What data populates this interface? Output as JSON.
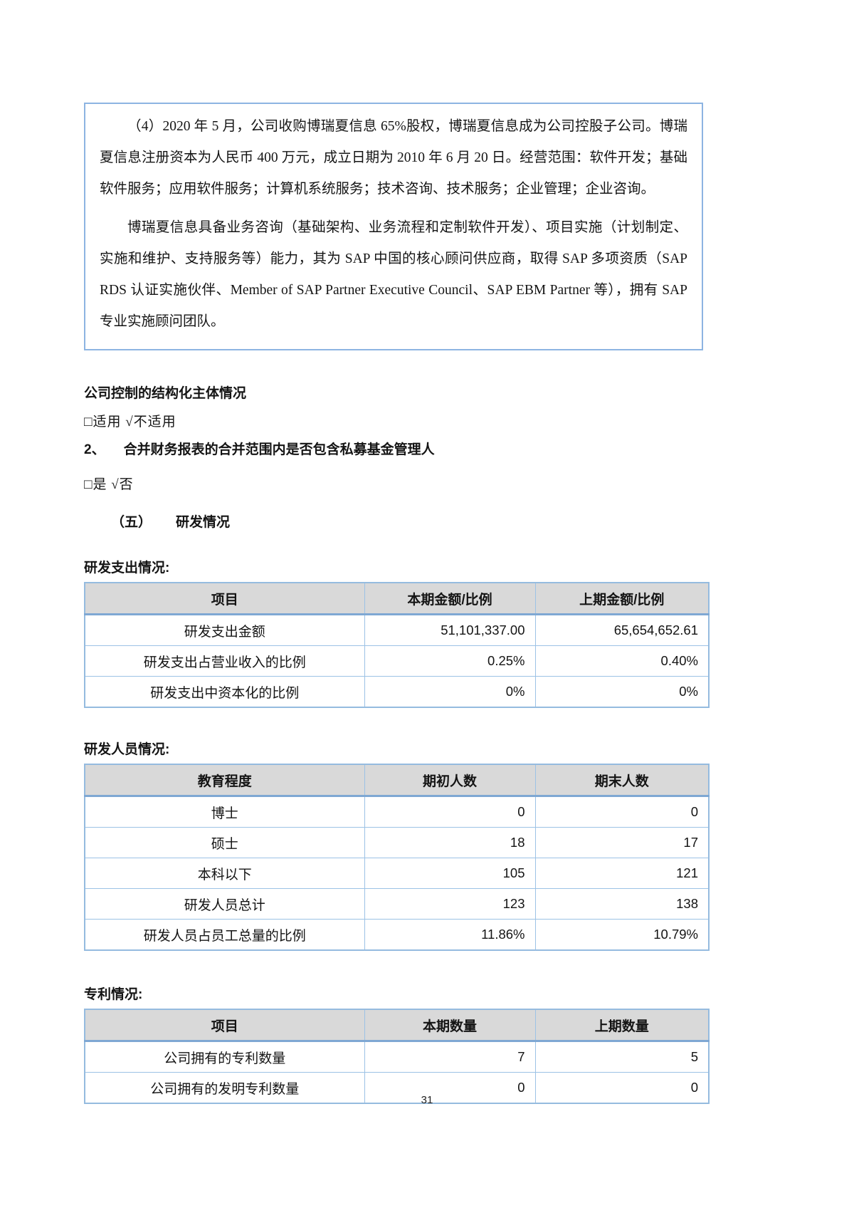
{
  "intro_box": {
    "paragraphs": [
      "（4）2020 年 5 月，公司收购博瑞夏信息 65%股权，博瑞夏信息成为公司控股子公司。博瑞夏信息注册资本为人民币 400 万元，成立日期为 2010 年 6 月 20 日。经营范围：软件开发；基础软件服务；应用软件服务；计算机系统服务；技术咨询、技术服务；企业管理；企业咨询。",
      "博瑞夏信息具备业务咨询（基础架构、业务流程和定制软件开发）、项目实施（计划制定、实施和维护、支持服务等）能力，其为 SAP 中国的核心顾问供应商，取得 SAP 多项资质（SAP RDS 认证实施伙伴、Member of SAP Partner Executive Council、SAP EBM Partner 等），拥有 SAP 专业实施顾问团队。"
    ]
  },
  "sections": {
    "structured_entity": {
      "title": "公司控制的结构化主体情况",
      "checkbox_line": "□适用  √不适用"
    },
    "q2": {
      "number": "2、",
      "title": "合并财务报表的合并范围内是否包含私募基金管理人",
      "checkbox_line": "□是  √否"
    },
    "rd": {
      "number": "（五）",
      "title": "研发情况"
    }
  },
  "tables": {
    "rd_expense": {
      "label": "研发支出情况:",
      "headers": [
        "项目",
        "本期金额/比例",
        "上期金额/比例"
      ],
      "rows": [
        [
          "研发支出金额",
          "51,101,337.00",
          "65,654,652.61"
        ],
        [
          "研发支出占营业收入的比例",
          "0.25%",
          "0.40%"
        ],
        [
          "研发支出中资本化的比例",
          "0%",
          "0%"
        ]
      ]
    },
    "rd_staff": {
      "label": "研发人员情况:",
      "headers": [
        "教育程度",
        "期初人数",
        "期末人数"
      ],
      "rows": [
        [
          "博士",
          "0",
          "0"
        ],
        [
          "硕士",
          "18",
          "17"
        ],
        [
          "本科以下",
          "105",
          "121"
        ],
        [
          "研发人员总计",
          "123",
          "138"
        ],
        [
          "研发人员占员工总量的比例",
          "11.86%",
          "10.79%"
        ]
      ]
    },
    "patents": {
      "label": "专利情况:",
      "headers": [
        "项目",
        "本期数量",
        "上期数量"
      ],
      "rows": [
        [
          "公司拥有的专利数量",
          "7",
          "5"
        ],
        [
          "公司拥有的发明专利数量",
          "0",
          "0"
        ]
      ]
    }
  },
  "page": {
    "number": "31"
  },
  "colors": {
    "box_border": "#8DB4E2",
    "table_border": "#9CC2E5",
    "header_bg": "#D9D9D9"
  }
}
